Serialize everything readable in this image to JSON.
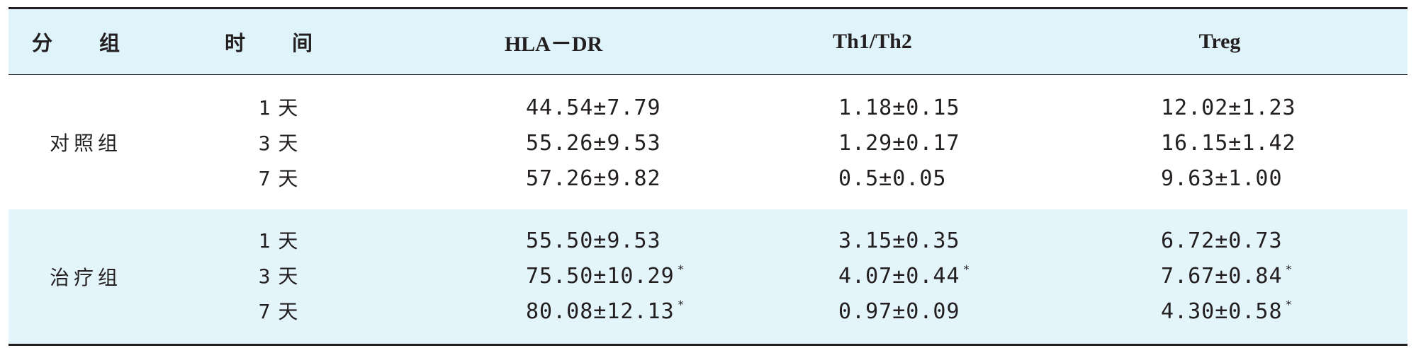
{
  "header": {
    "group": "分 组",
    "time": "时 间",
    "hla": "HLA－DR",
    "th": "Th1/Th2",
    "treg": "Treg"
  },
  "groups": [
    {
      "label": "对照组",
      "rows": [
        {
          "time_num": "1",
          "time_unit": "天",
          "hla": "44.54±7.79",
          "hla_star": "",
          "th": "1.18±0.15",
          "th_star": "",
          "treg": "12.02±1.23",
          "treg_star": ""
        },
        {
          "time_num": "3",
          "time_unit": "天",
          "hla": "55.26±9.53",
          "hla_star": "",
          "th": "1.29±0.17",
          "th_star": "",
          "treg": "16.15±1.42",
          "treg_star": ""
        },
        {
          "time_num": "7",
          "time_unit": "天",
          "hla": "57.26±9.82",
          "hla_star": "",
          "th": "0.5±0.05",
          "th_star": "",
          "treg": "9.63±1.00",
          "treg_star": ""
        }
      ]
    },
    {
      "label": "治疗组",
      "rows": [
        {
          "time_num": "1",
          "time_unit": "天",
          "hla": "55.50±9.53",
          "hla_star": "",
          "th": "3.15±0.35",
          "th_star": "",
          "treg": "6.72±0.73",
          "treg_star": ""
        },
        {
          "time_num": "3",
          "time_unit": "天",
          "hla": "75.50±10.29",
          "hla_star": "*",
          "th": "4.07±0.44",
          "th_star": "*",
          "treg": "7.67±0.84",
          "treg_star": "*"
        },
        {
          "time_num": "7",
          "time_unit": "天",
          "hla": "80.08±12.13",
          "hla_star": "*",
          "th": "0.97±0.09",
          "th_star": "",
          "treg": "4.30±0.58",
          "treg_star": "*"
        }
      ]
    }
  ]
}
